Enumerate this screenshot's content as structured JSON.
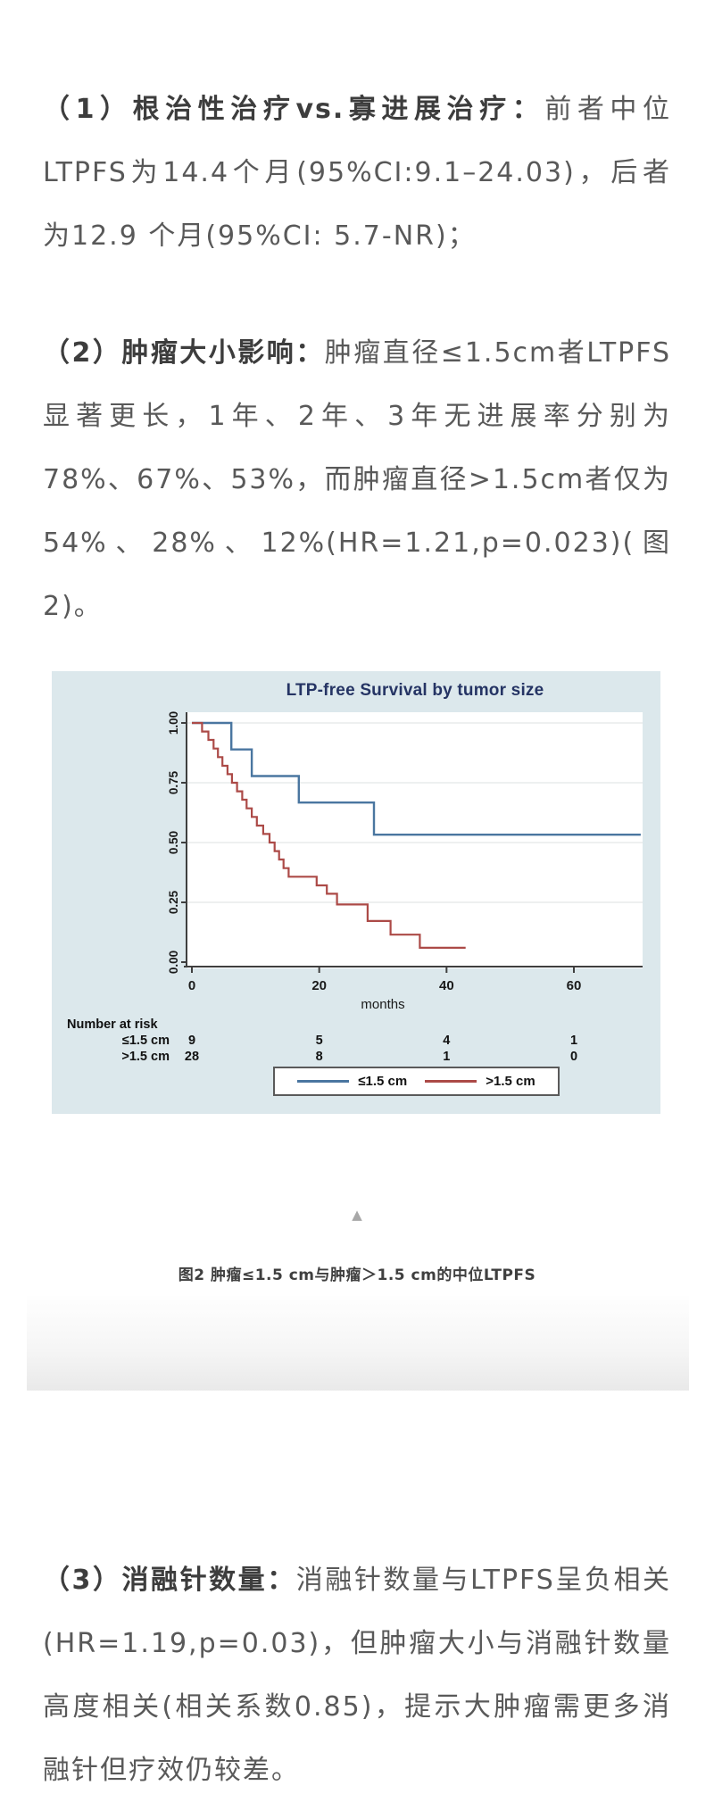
{
  "paragraphs": [
    {
      "bold": "（1）根治性治疗vs.寡进展治疗：",
      "text": "前者中位LTPFS为14.4个月(95%CI:9.1–24.03)，后者为12.9 个月(95%CI: 5.7-NR)；"
    },
    {
      "bold": "（2）肿瘤大小影响：",
      "text": "肿瘤直径≤1.5cm者LTPFS显著更长，1年、2年、3年无进展率分别为78%、67%、53%，而肿瘤直径>1.5cm者仅为54%、28%、12%(HR=1.21,p=0.023)(图2)。"
    },
    {
      "bold": "（3）消融针数量：",
      "text": "消融针数量与LTPFS呈负相关(HR=1.19,p=0.03)，但肿瘤大小与消融针数量高度相关(相关系数0.85)，提示大肿瘤需更多消融针但疗效仍较差。"
    }
  ],
  "figure": {
    "collapse_icon": "▲",
    "caption": "图2 肿瘤≤1.5 cm与肿瘤＞1.5 cm的中位LTPFS"
  },
  "chart_data": {
    "type": "line",
    "subtype": "kaplan-meier-step",
    "title": "LTP-free Survival by tumor size",
    "xlabel": "months",
    "x_ticks": [
      0,
      20,
      40,
      60
    ],
    "y_ticks": [
      "1.00",
      "0.75",
      "0.50",
      "0.25",
      "0.00"
    ],
    "xlim": [
      0,
      70.5
    ],
    "ylim": [
      0,
      1
    ],
    "grid": "horizontal",
    "background": "#dce8ec",
    "plot_background": "#ffffff",
    "axis_color": "#3f3f3f",
    "grid_color": "#e3e7e7",
    "legend_position": "bottom",
    "series": [
      {
        "name": "≤1.5 cm",
        "color": "#4a76a0",
        "points": [
          [
            0,
            1.0
          ],
          [
            6.2,
            0.889
          ],
          [
            9.4,
            0.778
          ],
          [
            16.8,
            0.667
          ],
          [
            28.6,
            0.533
          ]
        ],
        "end": 70.5
      },
      {
        "name": ">1.5 cm",
        "color": "#ac4a47",
        "points": [
          [
            0,
            1.0
          ],
          [
            1.6,
            0.964
          ],
          [
            2.6,
            0.929
          ],
          [
            3.4,
            0.893
          ],
          [
            4.1,
            0.857
          ],
          [
            4.8,
            0.821
          ],
          [
            5.6,
            0.786
          ],
          [
            6.3,
            0.75
          ],
          [
            7.1,
            0.714
          ],
          [
            7.9,
            0.679
          ],
          [
            8.6,
            0.643
          ],
          [
            9.4,
            0.607
          ],
          [
            10.2,
            0.571
          ],
          [
            11.2,
            0.536
          ],
          [
            12.2,
            0.5
          ],
          [
            13.0,
            0.464
          ],
          [
            13.7,
            0.429
          ],
          [
            14.4,
            0.393
          ],
          [
            15.2,
            0.357
          ],
          [
            19.6,
            0.321
          ],
          [
            21.2,
            0.286
          ],
          [
            22.8,
            0.241
          ],
          [
            27.6,
            0.172
          ],
          [
            31.2,
            0.115
          ],
          [
            35.8,
            0.06
          ]
        ],
        "end": 43
      }
    ],
    "risk_table": {
      "title": "Number at risk",
      "rows": [
        {
          "label": "≤1.5 cm",
          "values": [
            "9",
            "5",
            "4",
            "1"
          ]
        },
        {
          "label": ">1.5 cm",
          "values": [
            "28",
            "8",
            "1",
            "0"
          ]
        }
      ]
    }
  }
}
